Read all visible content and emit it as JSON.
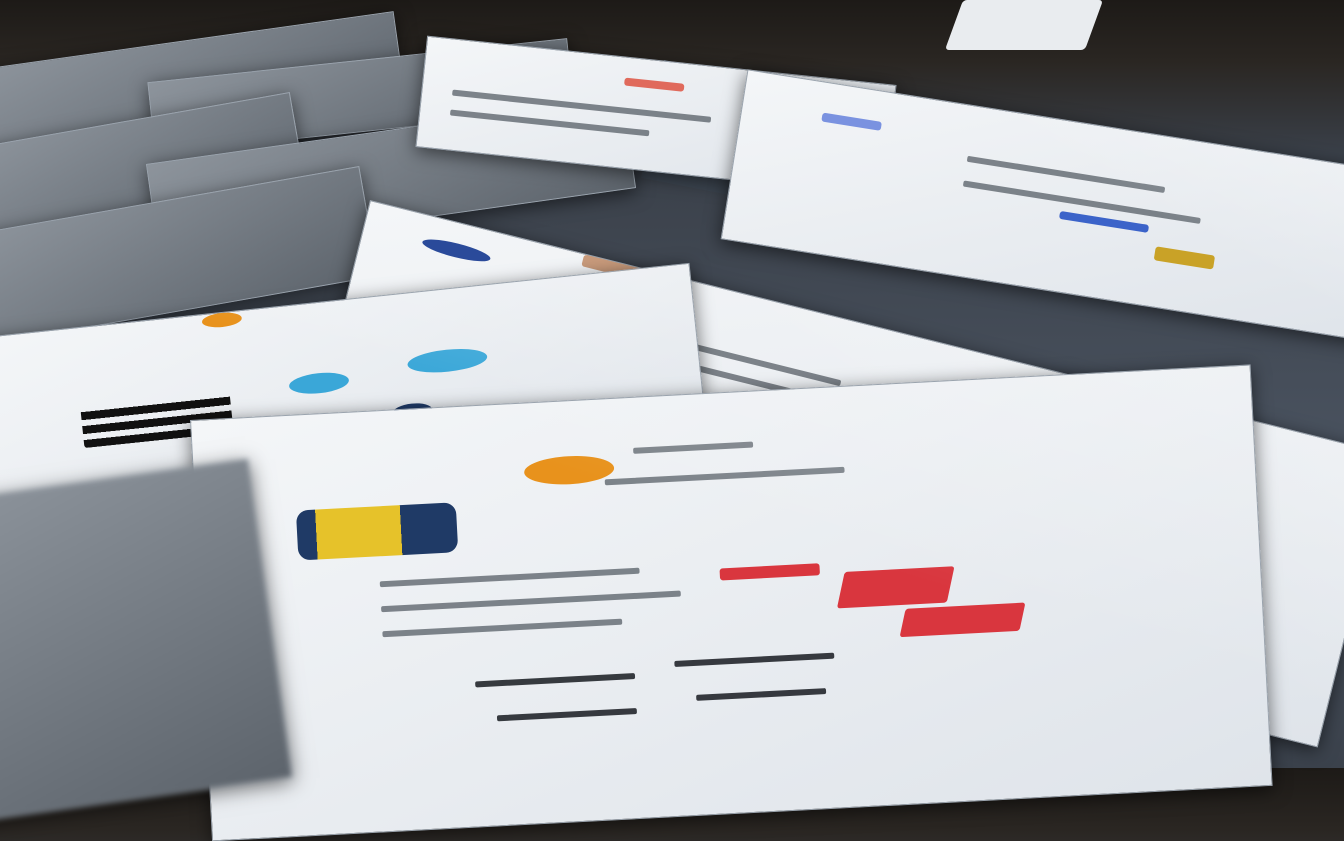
{
  "scene": {
    "description_colors": {
      "background": "#2a2622",
      "table": "#4a5360",
      "paper": "#eef1f4",
      "accent_orange": "#e8921c",
      "accent_red": "#d9363e",
      "accent_blue": "#2f7fd0",
      "accent_yellow": "#e6c22a",
      "accent_navy": "#1f3a66"
    },
    "icons": [
      "orange-disc-logo",
      "blue-yellow-badge",
      "red-banner-graphic",
      "blue-app-icon"
    ]
  }
}
